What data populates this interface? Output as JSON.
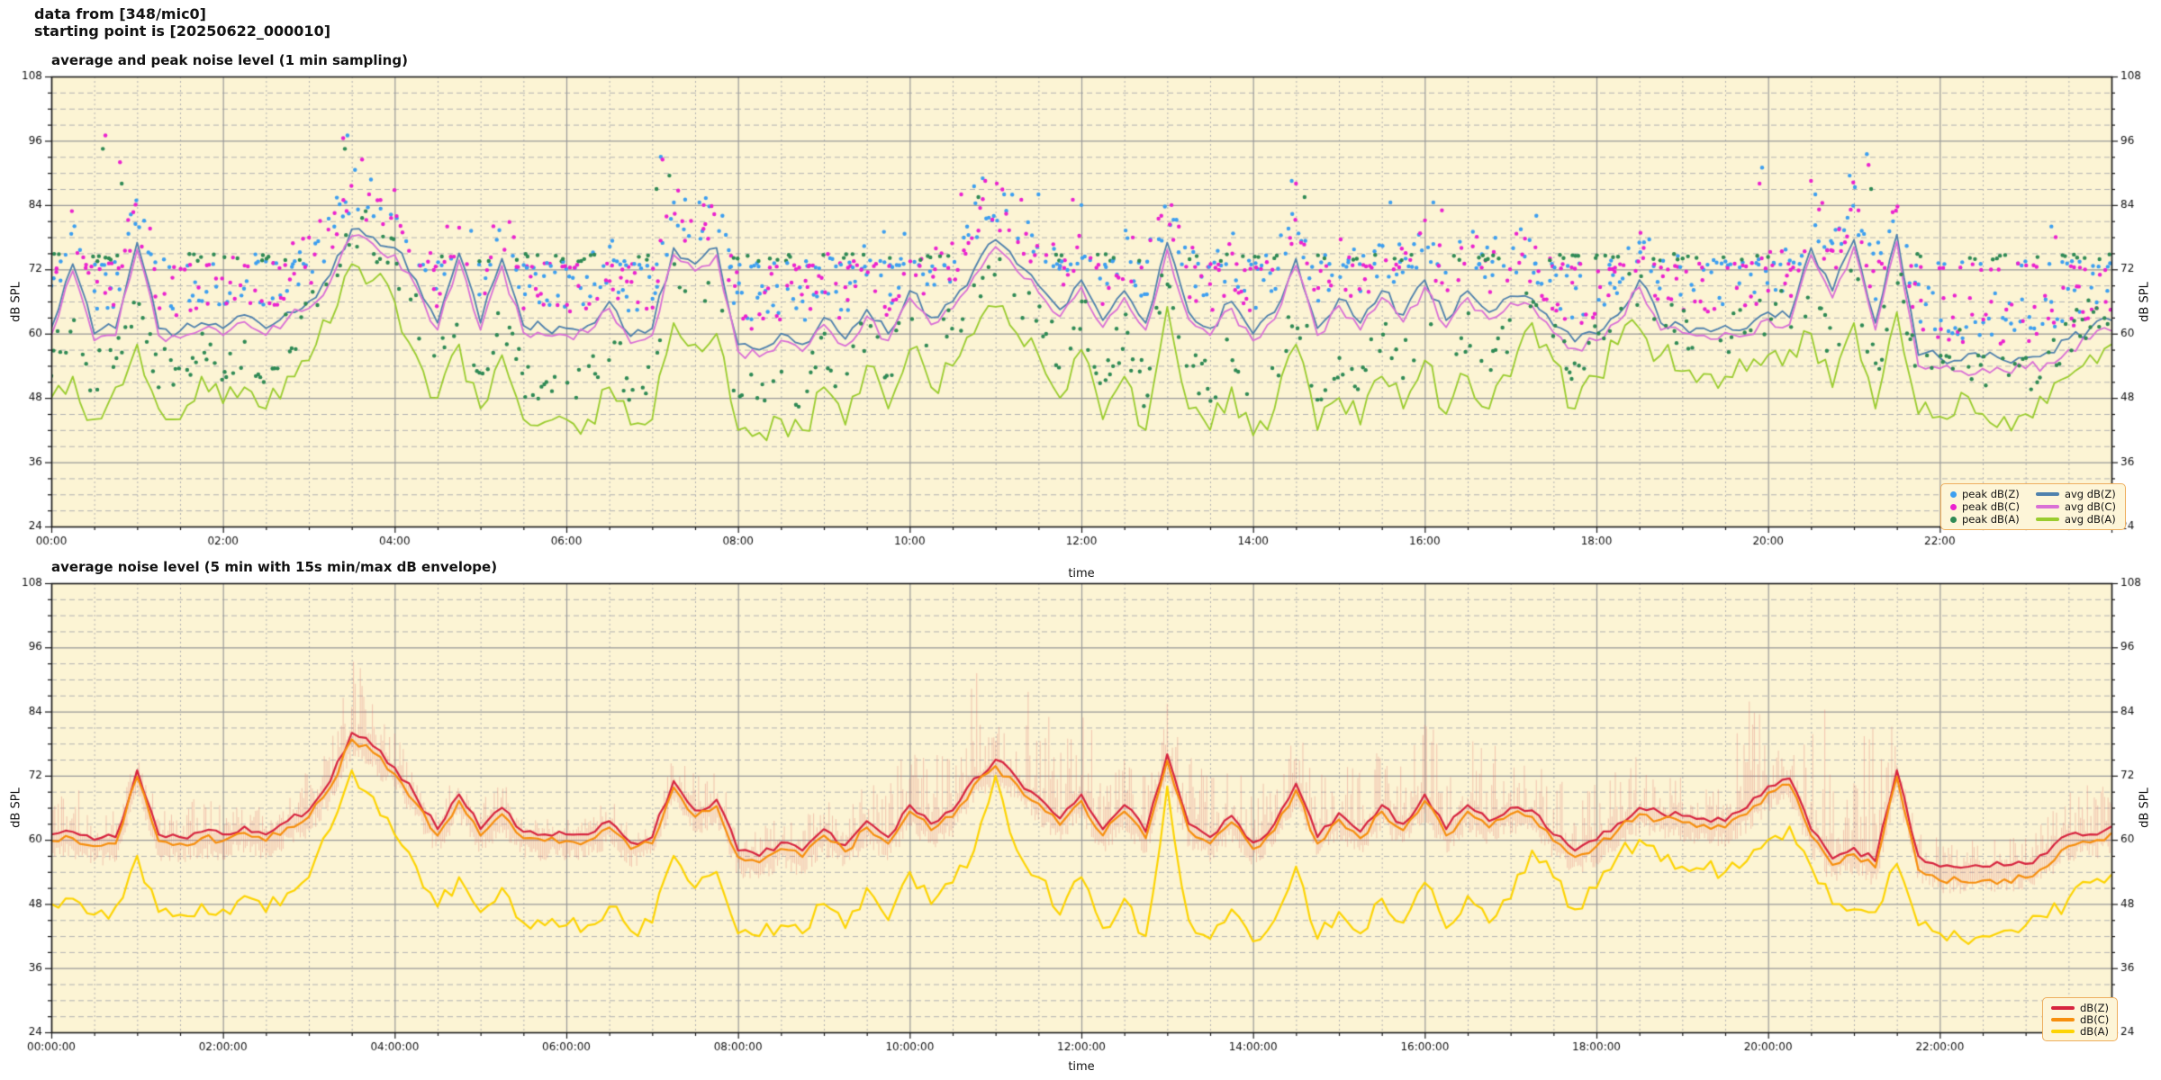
{
  "header": {
    "line1": "data from [348/mic0]",
    "line2": "starting point is [20250622_000010]"
  },
  "background_color": "#fcf4d4",
  "grid": {
    "major_color": "#999999",
    "minor_color": "#b3b3b3",
    "spine_color": "#1a1a1a"
  },
  "chart_data": [
    {
      "type": "line",
      "title": "average and peak noise level (1 min sampling)",
      "xlabel": "time",
      "ylabel": "dB SPL",
      "ylim": [
        24,
        108
      ],
      "y_tick_labels": [
        24,
        36,
        48,
        60,
        72,
        84,
        96,
        108
      ],
      "y_minor_step": 3,
      "x_range_hours": [
        0,
        24
      ],
      "x_major_step_hours": 2,
      "x_minor_step_hours": 0.5,
      "x_tick_labels": [
        "00:00",
        "02:00",
        "04:00",
        "06:00",
        "08:00",
        "10:00",
        "12:00",
        "14:00",
        "16:00",
        "18:00",
        "20:00",
        "22:00"
      ],
      "sample_step_hours": 0.25,
      "grid": true,
      "legend_position": "lower right",
      "series": [
        {
          "name": "avg dB(Z)",
          "color": "#4f81ad",
          "jitter": 1.2,
          "values": [
            61,
            73,
            60,
            61,
            77,
            61,
            60.5,
            62,
            61,
            63.5,
            61,
            64,
            66,
            71,
            79.5,
            78,
            76,
            70,
            62,
            75,
            62,
            74,
            61.5,
            61,
            61,
            61.5,
            66,
            59.5,
            61,
            76,
            73,
            76,
            58,
            57,
            60,
            58,
            63,
            59,
            64.5,
            60,
            68,
            63,
            66,
            72,
            77.5,
            73,
            69,
            64.5,
            70,
            62.5,
            68,
            62,
            77,
            64,
            61,
            66,
            60,
            64,
            74,
            61,
            66.5,
            62,
            68,
            63.5,
            70,
            62.5,
            68,
            64,
            67,
            66.5,
            61.5,
            58.5,
            60,
            63.5,
            70,
            62,
            61.5,
            61,
            61.5,
            61,
            64,
            63,
            76,
            68,
            77.5,
            62,
            78.5,
            56,
            55.5,
            55,
            55.5,
            55,
            55.5,
            56.5,
            59,
            61,
            62.5
          ]
        },
        {
          "name": "avg dB(C)",
          "color": "#da70d6",
          "jitter": 1.2,
          "values": [
            59.7,
            71.7,
            58.7,
            59.7,
            75.7,
            59.7,
            59.2,
            60.7,
            59.7,
            62.2,
            59.7,
            62.7,
            64.7,
            69.7,
            78.2,
            76.7,
            74.7,
            68.7,
            60.7,
            73.7,
            60.7,
            72.7,
            60.2,
            59.7,
            59.7,
            60.2,
            64.7,
            58.2,
            59.7,
            74.7,
            71.7,
            74.7,
            56.7,
            55.7,
            58.7,
            56.7,
            61.7,
            57.7,
            63.2,
            58.7,
            66.7,
            61.7,
            64.7,
            70.7,
            76.2,
            71.7,
            67.7,
            63.2,
            68.7,
            61.2,
            66.7,
            60.7,
            75.7,
            62.7,
            59.7,
            64.7,
            58.7,
            62.7,
            72.7,
            59.7,
            65.2,
            60.7,
            66.7,
            62.2,
            68.7,
            61.2,
            66.7,
            62.7,
            65.7,
            65.2,
            60.2,
            57.2,
            58.7,
            62.2,
            68.7,
            60.7,
            60.2,
            59.7,
            60.2,
            59.7,
            62.7,
            61.7,
            74.7,
            66.7,
            76.2,
            60.7,
            77.2,
            54,
            53.5,
            53,
            53.5,
            53,
            53.5,
            54.5,
            57,
            59,
            60.5
          ]
        },
        {
          "name": "avg dB(A)",
          "color": "#9acc2e",
          "jitter": 3.0,
          "values": [
            48,
            52,
            44,
            50,
            58,
            46,
            44,
            52,
            47,
            50,
            46,
            52,
            55,
            62,
            73,
            70,
            66,
            56,
            48,
            58,
            46,
            56,
            44,
            43.5,
            44,
            44,
            50,
            43,
            44,
            62,
            58,
            60,
            42,
            41.5,
            44,
            42,
            50,
            43,
            54,
            46,
            57,
            50,
            54,
            60,
            65,
            60,
            56,
            48,
            57,
            44,
            52,
            42,
            65,
            46,
            42,
            50,
            41,
            46,
            58,
            42,
            48,
            43,
            52,
            46,
            55,
            45,
            52,
            46,
            52,
            62,
            55,
            46,
            52,
            58,
            61,
            56,
            53,
            52.5,
            52,
            53,
            56,
            57,
            60,
            50,
            62,
            46,
            64,
            45,
            44.5,
            49,
            45,
            44.5,
            45,
            47,
            52,
            56,
            58
          ]
        }
      ],
      "scatter": {
        "step_hours": 0.033,
        "series": [
          {
            "name": "peak dB(Z)",
            "color": "#3d9ff0",
            "base": 0,
            "offset_min": 4,
            "offset_max": 13,
            "density": 0.58
          },
          {
            "name": "peak dB(C)",
            "color": "#eb22cf",
            "base": 1,
            "offset_min": 4,
            "offset_max": 14,
            "density": 0.52
          },
          {
            "name": "peak dB(A)",
            "color": "#2f8a55",
            "base": 2,
            "offset_min": 4,
            "offset_max": 12,
            "density": 0.52
          }
        ],
        "hum_band": {
          "levels": [
            73.0,
            72.5,
            74.2
          ],
          "jitter": 0.7,
          "density": 0.27,
          "gate_below_avg_z": 66
        },
        "outliers": [
          [
            0.63,
            97,
            1
          ],
          [
            0.6,
            94.5,
            2
          ],
          [
            0.8,
            92,
            1
          ],
          [
            0.82,
            88,
            2
          ],
          [
            0.98,
            80.5,
            0
          ],
          [
            3.45,
            97,
            0
          ],
          [
            3.4,
            96.5,
            1
          ],
          [
            3.42,
            94.5,
            2
          ],
          [
            3.62,
            92.5,
            1
          ],
          [
            3.3,
            82.5,
            1
          ],
          [
            7.1,
            93,
            0
          ],
          [
            7.12,
            92.5,
            1
          ],
          [
            7.2,
            89.5,
            2
          ],
          [
            7.05,
            87,
            2
          ],
          [
            7.55,
            84.5,
            0
          ],
          [
            7.6,
            84,
            1
          ],
          [
            7.35,
            81,
            1
          ],
          [
            9.7,
            79,
            0
          ],
          [
            10.6,
            86,
            1
          ],
          [
            10.75,
            87.5,
            0
          ],
          [
            10.85,
            89,
            0
          ],
          [
            10.88,
            88.5,
            1
          ],
          [
            10.8,
            85.5,
            2
          ],
          [
            11.1,
            86,
            0
          ],
          [
            11.3,
            85,
            1
          ],
          [
            11.5,
            86,
            0
          ],
          [
            11.9,
            85,
            1
          ],
          [
            12.0,
            84,
            0
          ],
          [
            13.05,
            84,
            1
          ],
          [
            14.45,
            88.5,
            0
          ],
          [
            14.5,
            88,
            1
          ],
          [
            14.6,
            85.5,
            2
          ],
          [
            15.6,
            84.5,
            0
          ],
          [
            16.1,
            84.5,
            0
          ],
          [
            16.2,
            83,
            1
          ],
          [
            17.3,
            82,
            0
          ],
          [
            18.5,
            77,
            0
          ],
          [
            18.55,
            76,
            1
          ],
          [
            19.93,
            91,
            0
          ],
          [
            19.9,
            88,
            1
          ],
          [
            20.5,
            88.5,
            1
          ],
          [
            20.55,
            86,
            0
          ],
          [
            20.95,
            89.5,
            0
          ],
          [
            21.15,
            93.5,
            0
          ],
          [
            21.17,
            91.5,
            1
          ],
          [
            21.2,
            87,
            2
          ],
          [
            23.3,
            80,
            0
          ],
          [
            23.35,
            78,
            1
          ]
        ]
      },
      "legend": {
        "scatter_labels": [
          "peak dB(Z)",
          "peak dB(C)",
          "peak dB(A)"
        ],
        "line_labels": [
          "avg dB(Z)",
          "avg dB(C)",
          "avg dB(A)"
        ]
      }
    },
    {
      "type": "line",
      "title": "average noise level (5 min with 15s min/max dB envelope)",
      "xlabel": "time",
      "ylabel": "dB SPL",
      "ylim": [
        24,
        108
      ],
      "y_tick_labels": [
        24,
        36,
        48,
        60,
        72,
        84,
        96,
        108
      ],
      "y_minor_step": 3,
      "x_range_hours": [
        0,
        24
      ],
      "x_major_step_hours": 2,
      "x_minor_step_hours": 0.5,
      "x_tick_labels": [
        "00:00:00",
        "02:00:00",
        "04:00:00",
        "06:00:00",
        "08:00:00",
        "10:00:00",
        "12:00:00",
        "14:00:00",
        "16:00:00",
        "18:00:00",
        "20:00:00",
        "22:00:00"
      ],
      "sample_step_hours": 0.25,
      "grid": true,
      "legend_position": "lower right",
      "series": [
        {
          "name": "dB(Z)",
          "color": "#d7243f",
          "jitter": 0.8,
          "values": [
            61,
            61.5,
            60,
            60.5,
            73,
            61,
            60.5,
            61.5,
            61,
            62.5,
            61,
            63.5,
            65.5,
            71,
            80,
            77.5,
            73.5,
            68,
            62,
            68.5,
            62,
            66,
            61.5,
            61,
            61,
            61,
            63.5,
            59.5,
            60.5,
            71,
            65.5,
            67.5,
            58,
            57,
            59.5,
            58,
            62,
            59,
            63.5,
            60.5,
            66.5,
            63,
            65.5,
            71.5,
            75,
            71.5,
            68,
            64,
            68.5,
            62,
            66.5,
            61.5,
            76,
            63,
            60.5,
            64.5,
            59.5,
            63,
            70.5,
            60.5,
            65,
            61.5,
            66.5,
            63,
            68.5,
            62,
            66.5,
            63.5,
            66,
            65.5,
            61,
            58,
            60,
            63,
            66,
            65,
            64.5,
            64,
            63.5,
            66,
            70,
            71.5,
            62,
            56.5,
            58.5,
            56,
            73,
            57,
            55,
            54.8,
            55,
            55.2,
            55.5,
            57.5,
            61,
            61,
            62.5
          ]
        },
        {
          "name": "dB(C)",
          "color": "#f78f0e",
          "jitter": 0.8,
          "values": [
            59.8,
            60.3,
            58.8,
            59.3,
            71.8,
            59.8,
            59.3,
            60.3,
            59.8,
            61.3,
            59.8,
            62.3,
            64.3,
            69.8,
            78.8,
            76.3,
            72.3,
            66.8,
            60.8,
            67.3,
            60.8,
            64.8,
            60.3,
            59.8,
            59.8,
            59.8,
            62.3,
            58.3,
            59.3,
            69.8,
            64.3,
            66.3,
            56.8,
            55.8,
            58.3,
            56.8,
            60.8,
            57.8,
            62.3,
            59.3,
            65.3,
            61.8,
            64.3,
            70.3,
            73.8,
            70.3,
            66.8,
            62.8,
            67.3,
            60.8,
            65.3,
            60.3,
            74.8,
            61.8,
            59.3,
            63.3,
            58.3,
            61.8,
            69.3,
            59.3,
            63.8,
            60.3,
            65.3,
            61.8,
            67.3,
            60.8,
            65.3,
            62.3,
            64.8,
            64.3,
            59.8,
            56.8,
            58.8,
            61.8,
            64.8,
            63.8,
            63.3,
            62.8,
            62.3,
            64.8,
            68.8,
            70.3,
            60.8,
            55.3,
            57.3,
            54.8,
            71.8,
            54.4,
            52.4,
            52.2,
            52.4,
            52.6,
            52.9,
            55,
            58.8,
            59.5,
            61.3
          ]
        },
        {
          "name": "dB(A)",
          "color": "#fdd404",
          "jitter": 1.8,
          "values": [
            48,
            49,
            46,
            47.5,
            57,
            46.5,
            46,
            48,
            47,
            49.5,
            46.5,
            50,
            53,
            62,
            73,
            68,
            61,
            55,
            47.5,
            53,
            46.5,
            51,
            44.5,
            44,
            44,
            44,
            47.5,
            43,
            44.5,
            57,
            51,
            54,
            42.5,
            42,
            44,
            42.5,
            48,
            43.5,
            51,
            45,
            54,
            48,
            52,
            58,
            72,
            58,
            53,
            46,
            53,
            43.5,
            49,
            42,
            70,
            45,
            41.5,
            47,
            41,
            45,
            55,
            41.5,
            46.5,
            42.5,
            49,
            44.5,
            52,
            43.5,
            49.5,
            44.5,
            49,
            58,
            53,
            47,
            51,
            57,
            60,
            56,
            55,
            54.5,
            54,
            56,
            60,
            62.5,
            55,
            48,
            47,
            46.5,
            55.5,
            44,
            42.5,
            41.5,
            42,
            43,
            44,
            45.5,
            49,
            52,
            53.5
          ]
        }
      ],
      "envelope": {
        "applies_to": "dB(Z)",
        "color": "rgba(226,118,112,0.34)",
        "step_hours": 0.02,
        "min_drop_db": [
          2,
          5
        ],
        "max_values": [
          66,
          72,
          65,
          66,
          76,
          66,
          65,
          72,
          66,
          68,
          66,
          70,
          73,
          80,
          97,
          85,
          80,
          74,
          67,
          74,
          67,
          72,
          64,
          64,
          64,
          64,
          68,
          63,
          65,
          78,
          72,
          74,
          63,
          62,
          65,
          64,
          68,
          65,
          74,
          72,
          80,
          76,
          83,
          91,
          96,
          93,
          89,
          80,
          85,
          76,
          82,
          74,
          88,
          76,
          72,
          76,
          70,
          75,
          86,
          72,
          78,
          74,
          82,
          77,
          85,
          76,
          82,
          77,
          80,
          78,
          73,
          68,
          72,
          74,
          76,
          73,
          72,
          70,
          70,
          90,
          80,
          78,
          88,
          91,
          87,
          85,
          80,
          63,
          60,
          59,
          61,
          60,
          62,
          66,
          70,
          73,
          72
        ]
      },
      "legend": {
        "line_labels": [
          "dB(Z)",
          "dB(C)",
          "dB(A)"
        ]
      }
    }
  ]
}
